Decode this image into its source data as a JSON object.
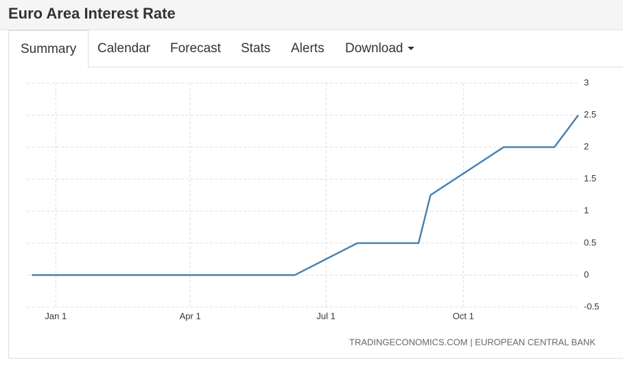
{
  "header": {
    "title": "Euro Area Interest Rate"
  },
  "tabs": [
    "Summary",
    "Calendar",
    "Forecast",
    "Stats",
    "Alerts",
    "Download"
  ],
  "chart_data": {
    "type": "line",
    "x": [
      -16,
      160,
      202,
      243,
      251,
      300,
      334,
      350
    ],
    "values": [
      0,
      0,
      0.5,
      0.5,
      1.25,
      2,
      2,
      2.5
    ],
    "color": "#4682b4",
    "xlim": [
      -19,
      351
    ],
    "xticks": [
      {
        "value": 0,
        "label": "Jan 1"
      },
      {
        "value": 90,
        "label": "Apr 1"
      },
      {
        "value": 181,
        "label": "Jul 1"
      },
      {
        "value": 273,
        "label": "Oct 1"
      }
    ],
    "ylim": [
      -0.5,
      3
    ],
    "yticks": [
      -0.5,
      0,
      0.5,
      1,
      1.5,
      2,
      2.5,
      3
    ],
    "grid": true,
    "source": "TRADINGECONOMICS.COM | EUROPEAN CENTRAL BANK"
  }
}
